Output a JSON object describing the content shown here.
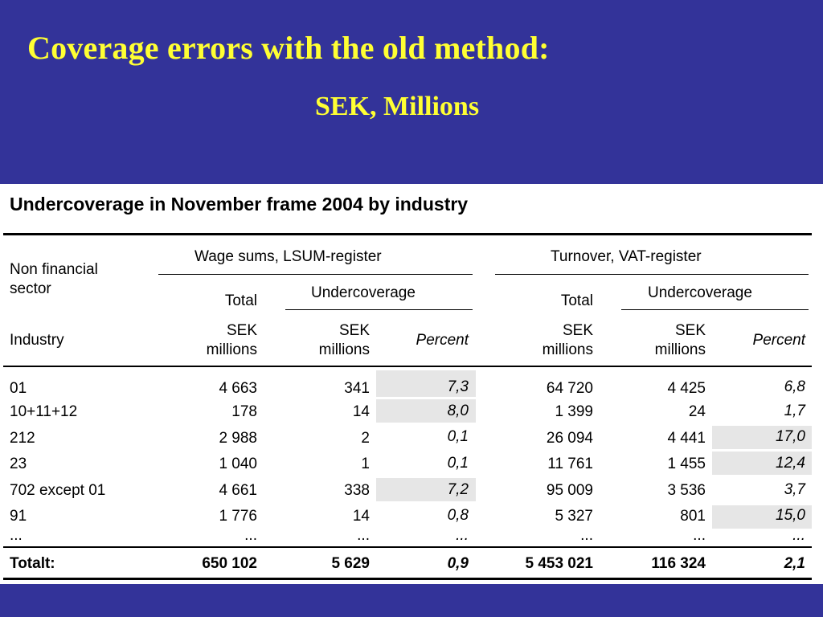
{
  "slide": {
    "title": "Coverage errors with the old method:",
    "subtitle": "SEK, Millions"
  },
  "table": {
    "title": "Undercoverage in November frame 2004 by industry",
    "sector_label": "Non financial sector",
    "group_wage": "Wage sums, LSUM-register",
    "group_turnover": "Turnover, VAT-register",
    "total_label": "Total",
    "undercoverage_label": "Undercoverage",
    "industry_label": "Industry",
    "sek_label": "SEK",
    "millions_label": "millions",
    "percent_label": "Percent",
    "rows": [
      {
        "industry": "01",
        "wage_total": "4 663",
        "wage_sek": "341",
        "wage_pct": "7,3",
        "turn_total": "64 720",
        "turn_sek": "4 425",
        "turn_pct": "6,8"
      },
      {
        "industry": "10+11+12",
        "wage_total": "178",
        "wage_sek": "14",
        "wage_pct": "8,0",
        "turn_total": "1 399",
        "turn_sek": "24",
        "turn_pct": "1,7"
      },
      {
        "industry": "212",
        "wage_total": "2 988",
        "wage_sek": "2",
        "wage_pct": "0,1",
        "turn_total": "26 094",
        "turn_sek": "4 441",
        "turn_pct": "17,0"
      },
      {
        "industry": "23",
        "wage_total": "1 040",
        "wage_sek": "1",
        "wage_pct": "0,1",
        "turn_total": "11 761",
        "turn_sek": "1 455",
        "turn_pct": "12,4"
      },
      {
        "industry": "702 except  01",
        "wage_total": "4 661",
        "wage_sek": "338",
        "wage_pct": "7,2",
        "turn_total": "95 009",
        "turn_sek": "3 536",
        "turn_pct": "3,7"
      },
      {
        "industry": "91",
        "wage_total": "1 776",
        "wage_sek": "14",
        "wage_pct": "0,8",
        "turn_total": "5 327",
        "turn_sek": "801",
        "turn_pct": "15,0"
      },
      {
        "industry": "...",
        "wage_total": "...",
        "wage_sek": "...",
        "wage_pct": "...",
        "turn_total": "...",
        "turn_sek": "...",
        "turn_pct": "..."
      }
    ],
    "total_row": {
      "industry": "Totalt:",
      "wage_total": "650 102",
      "wage_sek": "5 629",
      "wage_pct": "0,9",
      "turn_total": "5 453 021",
      "turn_sek": "116 324",
      "turn_pct": "2,1"
    }
  },
  "colors": {
    "background": "#333399",
    "title": "#ffff33",
    "highlight": "#e6e6e6"
  }
}
